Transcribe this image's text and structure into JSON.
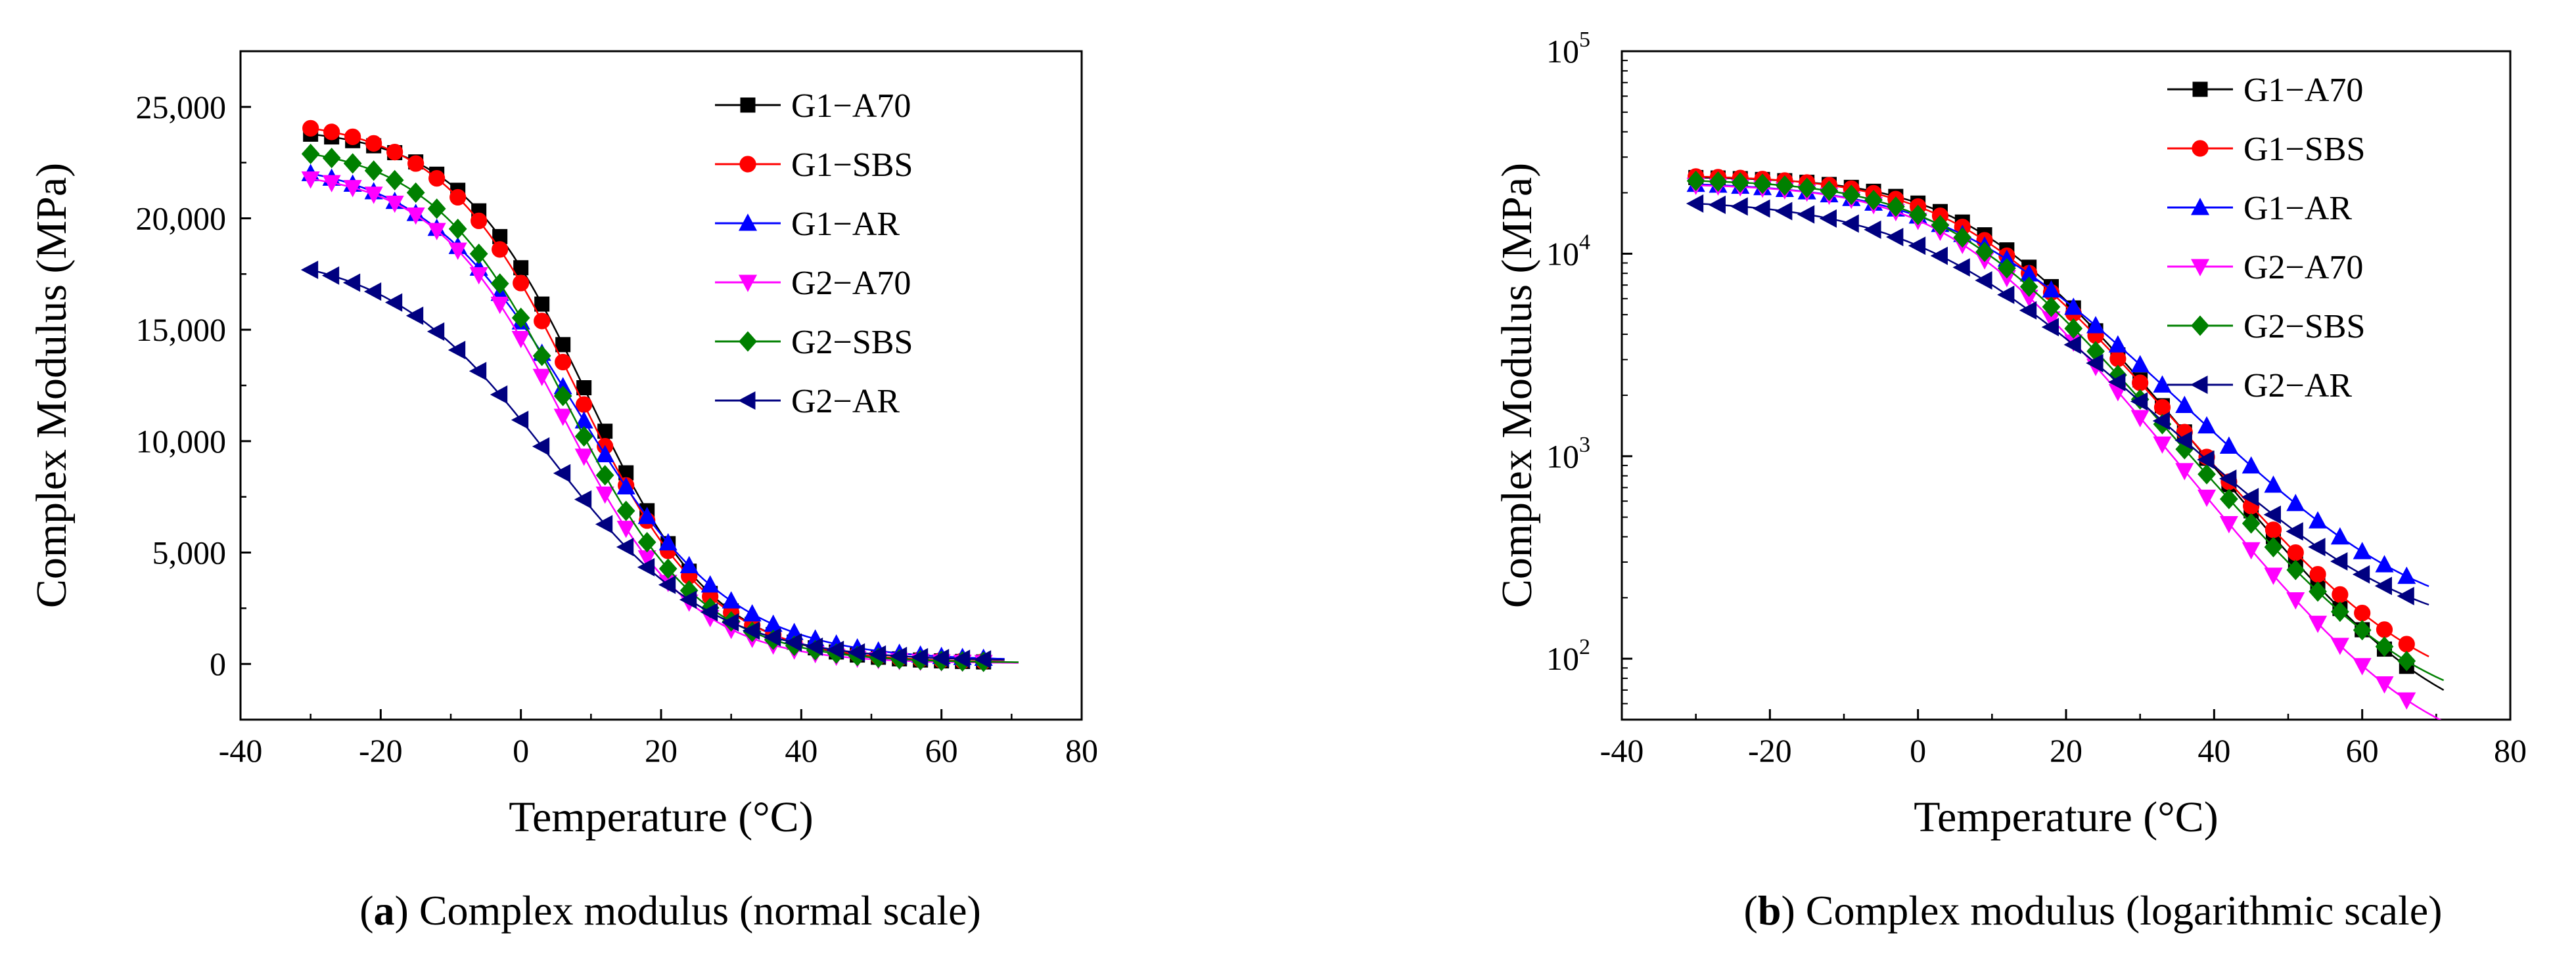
{
  "chart_data": [
    {
      "type": "line",
      "panel": "a",
      "scale": "linear",
      "caption_letter": "a",
      "caption_text": " Complex modulus (normal scale)",
      "xlabel": "Temperature (°C)",
      "ylabel": "Complex Modulus (MPa)",
      "xlim": [
        -40,
        80
      ],
      "ylim": [
        -2500,
        27500
      ],
      "xticks": [
        -40,
        -20,
        0,
        20,
        40,
        60,
        80
      ],
      "xtick_labels": [
        "-40",
        "-20",
        "0",
        "20",
        "40",
        "60",
        "80"
      ],
      "yticks": [
        0,
        5000,
        10000,
        15000,
        20000,
        25000
      ],
      "ytick_labels": [
        "0",
        "5,000",
        "10,000",
        "15,000",
        "20,000",
        "25,000"
      ],
      "legend_position": "top-right",
      "series": [
        {
          "name": "G1−A70",
          "color": "#000000",
          "marker": "square",
          "fit": {
            "min": 40,
            "max": 24100,
            "x0": 9.5,
            "s": 9.2,
            "xmin": -30,
            "xmax": 68
          }
        },
        {
          "name": "G1−SBS",
          "color": "#ff0000",
          "marker": "circle",
          "fit": {
            "min": 60,
            "max": 24500,
            "x0": 8.0,
            "s": 9.6,
            "xmin": -30,
            "xmax": 66
          }
        },
        {
          "name": "G1−AR",
          "color": "#0000ff",
          "marker": "triangle-up",
          "fit": {
            "min": 140,
            "max": 22700,
            "x0": 8.0,
            "s": 11.0,
            "xmin": -30,
            "xmax": 66
          }
        },
        {
          "name": "G2−A70",
          "color": "#ff00ff",
          "marker": "triangle-down",
          "fit": {
            "min": 30,
            "max": 22200,
            "x0": 6.0,
            "s": 9.2,
            "xmin": -30,
            "xmax": 68
          }
        },
        {
          "name": "G2−SBS",
          "color": "#008000",
          "marker": "diamond",
          "fit": {
            "min": 50,
            "max": 23400,
            "x0": 6.5,
            "s": 9.6,
            "xmin": -30,
            "xmax": 68
          }
        },
        {
          "name": "G2−AR",
          "color": "#000080",
          "marker": "triangle-left",
          "fit": {
            "min": 120,
            "max": 18600,
            "x0": 4.0,
            "s": 11.5,
            "xmin": -30,
            "xmax": 66
          }
        }
      ]
    },
    {
      "type": "line",
      "panel": "b",
      "scale": "log",
      "caption_letter": "b",
      "caption_text": " Complex modulus (logarithmic scale)",
      "xlabel": "Temperature (°C)",
      "ylabel": "Complex Modulus (MPa)",
      "xlim": [
        -40,
        80
      ],
      "ylim": [
        50,
        100000
      ],
      "xticks": [
        -40,
        -20,
        0,
        20,
        40,
        60,
        80
      ],
      "xtick_labels": [
        "-40",
        "-20",
        "0",
        "20",
        "40",
        "60",
        "80"
      ],
      "yticks": [
        100,
        1000,
        10000,
        100000
      ],
      "ytick_base": "10",
      "ytick_exponents": [
        "2",
        "3",
        "4",
        "5"
      ],
      "legend_position": "top-right",
      "series": [
        {
          "name": "G1−A70",
          "color": "#000000",
          "marker": "square",
          "fit": {
            "min": 40,
            "max": 24100,
            "x0": 9.5,
            "s": 9.2,
            "xmin": -30,
            "xmax": 68
          }
        },
        {
          "name": "G1−SBS",
          "color": "#ff0000",
          "marker": "circle",
          "fit": {
            "min": 60,
            "max": 24500,
            "x0": 8.0,
            "s": 9.6,
            "xmin": -30,
            "xmax": 66
          }
        },
        {
          "name": "G1−AR",
          "color": "#0000ff",
          "marker": "triangle-up",
          "fit": {
            "min": 140,
            "max": 22700,
            "x0": 8.0,
            "s": 11.0,
            "xmin": -30,
            "xmax": 66
          }
        },
        {
          "name": "G2−A70",
          "color": "#ff00ff",
          "marker": "triangle-down",
          "fit": {
            "min": 30,
            "max": 22200,
            "x0": 6.0,
            "s": 9.2,
            "xmin": -30,
            "xmax": 68
          }
        },
        {
          "name": "G2−SBS",
          "color": "#008000",
          "marker": "diamond",
          "fit": {
            "min": 50,
            "max": 23400,
            "x0": 6.5,
            "s": 9.6,
            "xmin": -30,
            "xmax": 68
          }
        },
        {
          "name": "G2−AR",
          "color": "#000080",
          "marker": "triangle-left",
          "fit": {
            "min": 120,
            "max": 18600,
            "x0": 4.0,
            "s": 11.5,
            "xmin": -30,
            "xmax": 66
          }
        }
      ]
    }
  ]
}
